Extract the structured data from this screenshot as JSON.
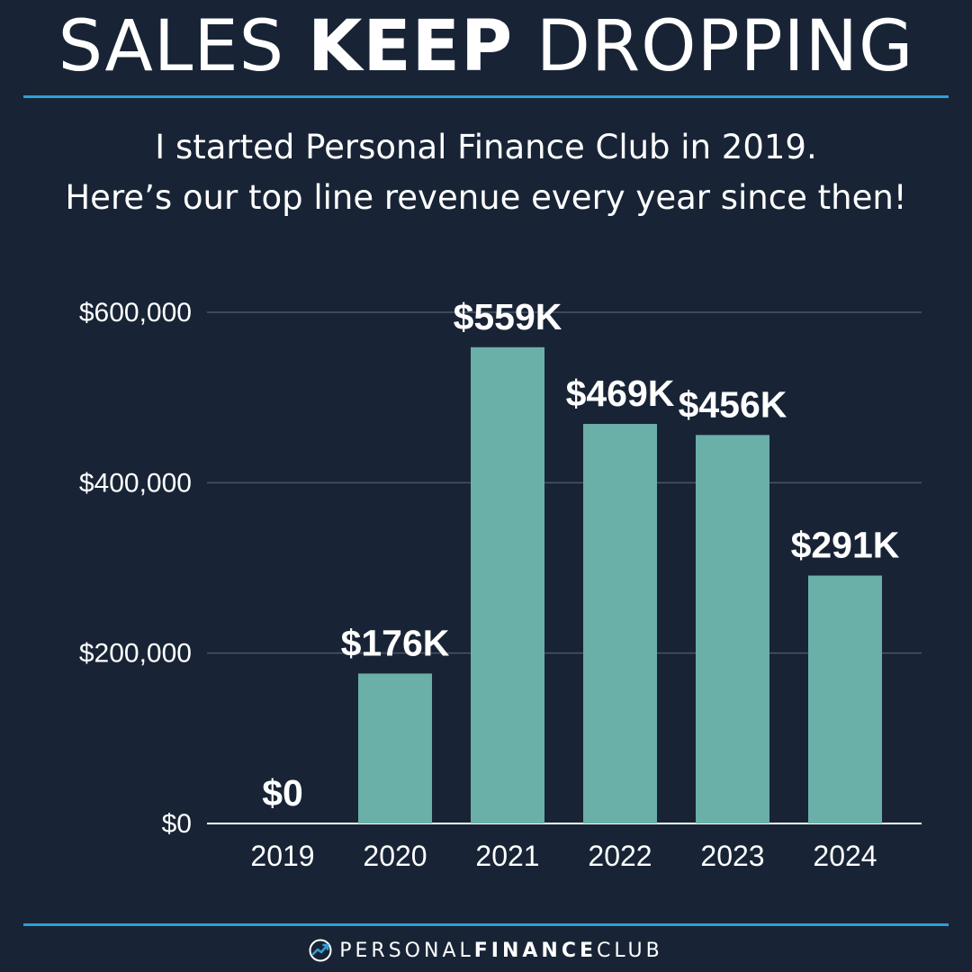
{
  "header": {
    "title_light_1": "SALES ",
    "title_bold": "KEEP",
    "title_light_2": " DROPPING"
  },
  "subtitle": {
    "line1": "I started Personal Finance Club in 2019.",
    "line2": "Here’s our top line revenue every year since then!"
  },
  "colors": {
    "background": "#182436",
    "bar": "#6aafa8",
    "accent_rule": "#2e9fd8",
    "gridline": "#4a5668",
    "text": "#ffffff"
  },
  "chart_data": {
    "type": "bar",
    "categories": [
      "2019",
      "2020",
      "2021",
      "2022",
      "2023",
      "2024"
    ],
    "values": [
      0,
      176000,
      559000,
      469000,
      456000,
      291000
    ],
    "data_labels": [
      "$0",
      "$176K",
      "$559K",
      "$469K",
      "$456K",
      "$291K"
    ],
    "ylim": [
      0,
      600000
    ],
    "yticks": [
      0,
      200000,
      400000,
      600000
    ],
    "ytick_labels": [
      "$0",
      "$200,000",
      "$400,000",
      "$600,000"
    ],
    "grid": true,
    "legend": "none"
  },
  "footer": {
    "brand_part1": "PERSONAL",
    "brand_part2": "FINANCE",
    "brand_part3": "CLUB",
    "logo_icon": "trend-arrow-icon"
  }
}
